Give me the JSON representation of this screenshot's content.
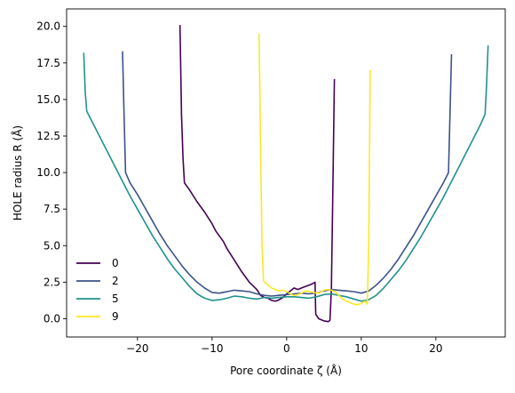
{
  "chart_data": {
    "type": "line",
    "title": "",
    "xlabel": "Pore coordinate ζ (Å)",
    "ylabel": "HOLE radius R (Å)",
    "xlim": [
      -29.5,
      29.3
    ],
    "ylim": [
      -1.25,
      21.2
    ],
    "xticks": [
      -20,
      -10,
      0,
      10,
      20
    ],
    "yticks": [
      0.0,
      2.5,
      5.0,
      7.5,
      10.0,
      12.5,
      15.0,
      17.5,
      20.0
    ],
    "xtick_labels": [
      "−20",
      "−10",
      "0",
      "10",
      "20"
    ],
    "ytick_labels": [
      "0.0",
      "2.5",
      "5.0",
      "7.5",
      "10.0",
      "12.5",
      "15.0",
      "17.5",
      "20.0"
    ],
    "grid": false,
    "legend_position": "lower-left",
    "series": [
      {
        "name": "0",
        "color": "#440154",
        "points": [
          [
            -14.3,
            20.1
          ],
          [
            -14.1,
            14.0
          ],
          [
            -13.9,
            11.0
          ],
          [
            -13.7,
            9.3
          ],
          [
            -13.0,
            8.8
          ],
          [
            -12.0,
            8.0
          ],
          [
            -11.0,
            7.3
          ],
          [
            -10.0,
            6.5
          ],
          [
            -9.5,
            6.0
          ],
          [
            -8.5,
            5.3
          ],
          [
            -8.0,
            4.8
          ],
          [
            -7.0,
            4.0
          ],
          [
            -6.0,
            3.2
          ],
          [
            -5.0,
            2.5
          ],
          [
            -4.0,
            2.0
          ],
          [
            -3.5,
            1.6
          ],
          [
            -3.0,
            1.45
          ],
          [
            -2.5,
            1.4
          ],
          [
            -2.0,
            1.25
          ],
          [
            -1.5,
            1.2
          ],
          [
            -1.0,
            1.3
          ],
          [
            -0.5,
            1.45
          ],
          [
            0.0,
            1.7
          ],
          [
            0.5,
            1.9
          ],
          [
            1.0,
            2.1
          ],
          [
            1.5,
            2.0
          ],
          [
            2.0,
            2.1
          ],
          [
            2.5,
            2.2
          ],
          [
            3.0,
            2.3
          ],
          [
            3.5,
            2.4
          ],
          [
            3.8,
            2.5
          ],
          [
            3.9,
            0.3
          ],
          [
            4.3,
            0.0
          ],
          [
            5.0,
            -0.15
          ],
          [
            5.6,
            -0.2
          ],
          [
            5.8,
            -0.1
          ],
          [
            6.0,
            2.0
          ],
          [
            6.2,
            9.0
          ],
          [
            6.4,
            16.4
          ]
        ]
      },
      {
        "name": "2",
        "color": "#3b528b",
        "points": [
          [
            -22.0,
            18.3
          ],
          [
            -21.8,
            14.0
          ],
          [
            -21.6,
            10.0
          ],
          [
            -21.0,
            9.3
          ],
          [
            -20.0,
            8.5
          ],
          [
            -19.0,
            7.6
          ],
          [
            -18.0,
            6.7
          ],
          [
            -17.0,
            5.8
          ],
          [
            -16.0,
            5.0
          ],
          [
            -15.0,
            4.3
          ],
          [
            -14.0,
            3.6
          ],
          [
            -13.0,
            3.0
          ],
          [
            -12.0,
            2.5
          ],
          [
            -11.0,
            2.1
          ],
          [
            -10.0,
            1.8
          ],
          [
            -9.0,
            1.75
          ],
          [
            -8.0,
            1.85
          ],
          [
            -7.0,
            1.95
          ],
          [
            -6.0,
            1.9
          ],
          [
            -5.0,
            1.85
          ],
          [
            -4.0,
            1.7
          ],
          [
            -3.0,
            1.6
          ],
          [
            -2.0,
            1.55
          ],
          [
            -1.0,
            1.6
          ],
          [
            0.0,
            1.65
          ],
          [
            1.0,
            1.7
          ],
          [
            2.0,
            1.75
          ],
          [
            3.0,
            1.7
          ],
          [
            4.0,
            1.75
          ],
          [
            5.0,
            1.9
          ],
          [
            6.0,
            2.0
          ],
          [
            7.0,
            1.95
          ],
          [
            8.0,
            1.9
          ],
          [
            9.0,
            1.85
          ],
          [
            10.0,
            1.75
          ],
          [
            11.0,
            1.9
          ],
          [
            12.0,
            2.3
          ],
          [
            13.0,
            2.8
          ],
          [
            14.0,
            3.4
          ],
          [
            15.0,
            4.1
          ],
          [
            16.0,
            4.9
          ],
          [
            17.0,
            5.7
          ],
          [
            18.0,
            6.6
          ],
          [
            19.0,
            7.5
          ],
          [
            20.0,
            8.4
          ],
          [
            21.0,
            9.3
          ],
          [
            21.7,
            10.0
          ],
          [
            21.9,
            14.0
          ],
          [
            22.1,
            18.1
          ]
        ]
      },
      {
        "name": "5",
        "color": "#21918c",
        "points": [
          [
            -27.2,
            18.2
          ],
          [
            -27.0,
            15.5
          ],
          [
            -26.8,
            14.2
          ],
          [
            -26.0,
            13.4
          ],
          [
            -25.0,
            12.4
          ],
          [
            -24.0,
            11.4
          ],
          [
            -23.0,
            10.4
          ],
          [
            -22.0,
            9.4
          ],
          [
            -21.0,
            8.4
          ],
          [
            -20.0,
            7.5
          ],
          [
            -19.0,
            6.6
          ],
          [
            -18.0,
            5.7
          ],
          [
            -17.0,
            4.9
          ],
          [
            -16.0,
            4.1
          ],
          [
            -15.0,
            3.4
          ],
          [
            -14.0,
            2.8
          ],
          [
            -13.0,
            2.2
          ],
          [
            -12.0,
            1.7
          ],
          [
            -11.0,
            1.4
          ],
          [
            -10.0,
            1.25
          ],
          [
            -9.0,
            1.3
          ],
          [
            -8.0,
            1.4
          ],
          [
            -7.0,
            1.55
          ],
          [
            -6.0,
            1.5
          ],
          [
            -5.0,
            1.4
          ],
          [
            -4.0,
            1.35
          ],
          [
            -3.0,
            1.45
          ],
          [
            -2.0,
            1.4
          ],
          [
            -1.0,
            1.45
          ],
          [
            0.0,
            1.5
          ],
          [
            1.0,
            1.5
          ],
          [
            2.0,
            1.45
          ],
          [
            3.0,
            1.4
          ],
          [
            4.0,
            1.5
          ],
          [
            5.0,
            1.65
          ],
          [
            6.0,
            1.7
          ],
          [
            7.0,
            1.6
          ],
          [
            8.0,
            1.5
          ],
          [
            9.0,
            1.35
          ],
          [
            10.0,
            1.2
          ],
          [
            11.0,
            1.3
          ],
          [
            12.0,
            1.6
          ],
          [
            13.0,
            2.1
          ],
          [
            14.0,
            2.7
          ],
          [
            15.0,
            3.3
          ],
          [
            16.0,
            4.0
          ],
          [
            17.0,
            4.8
          ],
          [
            18.0,
            5.6
          ],
          [
            19.0,
            6.5
          ],
          [
            20.0,
            7.4
          ],
          [
            21.0,
            8.3
          ],
          [
            22.0,
            9.3
          ],
          [
            23.0,
            10.3
          ],
          [
            24.0,
            11.3
          ],
          [
            25.0,
            12.3
          ],
          [
            26.0,
            13.3
          ],
          [
            26.6,
            14.0
          ],
          [
            26.8,
            16.0
          ],
          [
            27.0,
            18.7
          ]
        ]
      },
      {
        "name": "9",
        "color": "#fde725",
        "points": [
          [
            -3.7,
            19.5
          ],
          [
            -3.5,
            12.0
          ],
          [
            -3.3,
            5.0
          ],
          [
            -3.1,
            2.6
          ],
          [
            -2.5,
            2.3
          ],
          [
            -2.0,
            2.1
          ],
          [
            -1.5,
            2.0
          ],
          [
            -1.0,
            1.9
          ],
          [
            -0.5,
            1.95
          ],
          [
            0.0,
            1.85
          ],
          [
            0.5,
            1.7
          ],
          [
            1.0,
            1.6
          ],
          [
            1.5,
            1.65
          ],
          [
            2.0,
            1.75
          ],
          [
            2.5,
            1.9
          ],
          [
            3.0,
            1.85
          ],
          [
            3.5,
            1.8
          ],
          [
            4.0,
            1.75
          ],
          [
            4.5,
            1.8
          ],
          [
            5.0,
            1.95
          ],
          [
            5.5,
            2.0
          ],
          [
            6.0,
            1.95
          ],
          [
            6.5,
            1.85
          ],
          [
            7.0,
            1.6
          ],
          [
            7.5,
            1.35
          ],
          [
            8.0,
            1.2
          ],
          [
            8.5,
            1.1
          ],
          [
            9.0,
            1.0
          ],
          [
            9.5,
            0.95
          ],
          [
            10.0,
            1.05
          ],
          [
            10.5,
            1.2
          ],
          [
            10.8,
            1.0
          ],
          [
            11.0,
            5.0
          ],
          [
            11.2,
            17.0
          ]
        ]
      }
    ]
  }
}
